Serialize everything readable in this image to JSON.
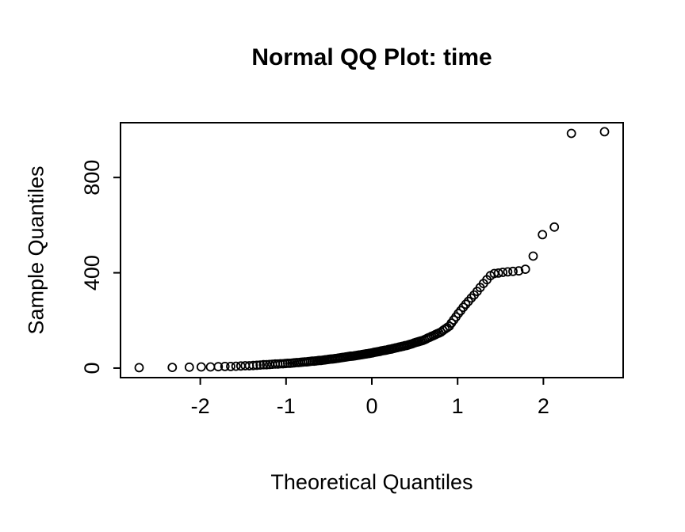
{
  "chart_data": {
    "type": "scatter",
    "title": "Normal QQ Plot: time",
    "xlabel": "Theoretical Quantiles",
    "ylabel": "Sample Quantiles",
    "x_ticks": [
      -2,
      -1,
      0,
      1,
      2
    ],
    "y_ticks": [
      0,
      400,
      800
    ],
    "xlim": [
      -2.93,
      2.93
    ],
    "ylim": [
      -40,
      1030
    ],
    "grid": false,
    "legend": "none",
    "marker": "open-circle",
    "marker_color": "#000000",
    "background_color": "#ffffff",
    "points": [
      [
        -2.713,
        2
      ],
      [
        -2.326,
        3
      ],
      [
        -2.128,
        4
      ],
      [
        -1.989,
        5
      ],
      [
        -1.881,
        5
      ],
      [
        -1.79,
        6
      ],
      [
        -1.713,
        7
      ],
      [
        -1.645,
        7
      ],
      [
        -1.584,
        8
      ],
      [
        -1.527,
        9
      ],
      [
        -1.476,
        10
      ],
      [
        -1.428,
        10
      ],
      [
        -1.383,
        11
      ],
      [
        -1.341,
        12
      ],
      [
        -1.301,
        13
      ],
      [
        -1.263,
        14
      ],
      [
        -1.227,
        14
      ],
      [
        -1.192,
        15
      ],
      [
        -1.159,
        16
      ],
      [
        -1.126,
        17
      ],
      [
        -1.095,
        17
      ],
      [
        -1.066,
        18
      ],
      [
        -1.036,
        18
      ],
      [
        -1.008,
        19
      ],
      [
        -0.981,
        20
      ],
      [
        -0.954,
        20
      ],
      [
        -0.928,
        21
      ],
      [
        -0.903,
        22
      ],
      [
        -0.878,
        23
      ],
      [
        -0.854,
        23
      ],
      [
        -0.83,
        24
      ],
      [
        -0.806,
        25
      ],
      [
        -0.783,
        26
      ],
      [
        -0.761,
        26
      ],
      [
        -0.739,
        27
      ],
      [
        -0.717,
        28
      ],
      [
        -0.695,
        29
      ],
      [
        -0.674,
        29
      ],
      [
        -0.653,
        30
      ],
      [
        -0.633,
        31
      ],
      [
        -0.613,
        32
      ],
      [
        -0.593,
        32
      ],
      [
        -0.573,
        33
      ],
      [
        -0.553,
        34
      ],
      [
        -0.534,
        35
      ],
      [
        -0.515,
        36
      ],
      [
        -0.496,
        37
      ],
      [
        -0.477,
        38
      ],
      [
        -0.459,
        38
      ],
      [
        -0.44,
        39
      ],
      [
        -0.422,
        40
      ],
      [
        -0.404,
        41
      ],
      [
        -0.385,
        42
      ],
      [
        -0.368,
        43
      ],
      [
        -0.35,
        44
      ],
      [
        -0.332,
        45
      ],
      [
        -0.314,
        46
      ],
      [
        -0.297,
        47
      ],
      [
        -0.279,
        48
      ],
      [
        -0.262,
        49
      ],
      [
        -0.245,
        50
      ],
      [
        -0.228,
        50
      ],
      [
        -0.21,
        51
      ],
      [
        -0.193,
        52
      ],
      [
        -0.176,
        53
      ],
      [
        -0.159,
        54
      ],
      [
        -0.143,
        55
      ],
      [
        -0.126,
        56
      ],
      [
        -0.109,
        57
      ],
      [
        -0.092,
        58
      ],
      [
        -0.075,
        59
      ],
      [
        -0.059,
        60
      ],
      [
        -0.042,
        61
      ],
      [
        -0.025,
        62
      ],
      [
        -0.008,
        63
      ],
      [
        0.008,
        64
      ],
      [
        0.025,
        66
      ],
      [
        0.042,
        67
      ],
      [
        0.059,
        68
      ],
      [
        0.075,
        69
      ],
      [
        0.092,
        70
      ],
      [
        0.109,
        72
      ],
      [
        0.126,
        73
      ],
      [
        0.143,
        74
      ],
      [
        0.159,
        75
      ],
      [
        0.176,
        76
      ],
      [
        0.193,
        78
      ],
      [
        0.21,
        79
      ],
      [
        0.228,
        80
      ],
      [
        0.245,
        82
      ],
      [
        0.262,
        83
      ],
      [
        0.279,
        85
      ],
      [
        0.297,
        86
      ],
      [
        0.314,
        88
      ],
      [
        0.332,
        89
      ],
      [
        0.35,
        91
      ],
      [
        0.368,
        92
      ],
      [
        0.385,
        94
      ],
      [
        0.404,
        95
      ],
      [
        0.422,
        97
      ],
      [
        0.44,
        99
      ],
      [
        0.459,
        101
      ],
      [
        0.477,
        103
      ],
      [
        0.496,
        106
      ],
      [
        0.515,
        108
      ],
      [
        0.534,
        110
      ],
      [
        0.553,
        112
      ],
      [
        0.573,
        114
      ],
      [
        0.593,
        116
      ],
      [
        0.613,
        119
      ],
      [
        0.633,
        122
      ],
      [
        0.653,
        126
      ],
      [
        0.674,
        129
      ],
      [
        0.695,
        133
      ],
      [
        0.717,
        136
      ],
      [
        0.739,
        140
      ],
      [
        0.761,
        144
      ],
      [
        0.783,
        147
      ],
      [
        0.806,
        151
      ],
      [
        0.83,
        158
      ],
      [
        0.854,
        164
      ],
      [
        0.878,
        170
      ],
      [
        0.903,
        176
      ],
      [
        0.928,
        189
      ],
      [
        0.954,
        202
      ],
      [
        0.981,
        215
      ],
      [
        1.008,
        229
      ],
      [
        1.036,
        241
      ],
      [
        1.066,
        255
      ],
      [
        1.095,
        268
      ],
      [
        1.126,
        280
      ],
      [
        1.159,
        294
      ],
      [
        1.192,
        307
      ],
      [
        1.227,
        322
      ],
      [
        1.263,
        338
      ],
      [
        1.301,
        355
      ],
      [
        1.341,
        371
      ],
      [
        1.383,
        388
      ],
      [
        1.428,
        397
      ],
      [
        1.476,
        399
      ],
      [
        1.527,
        402
      ],
      [
        1.584,
        404
      ],
      [
        1.645,
        406
      ],
      [
        1.713,
        408
      ],
      [
        1.79,
        415
      ],
      [
        1.881,
        470
      ],
      [
        1.989,
        560
      ],
      [
        2.128,
        592
      ],
      [
        2.326,
        985
      ],
      [
        2.713,
        992
      ]
    ]
  }
}
